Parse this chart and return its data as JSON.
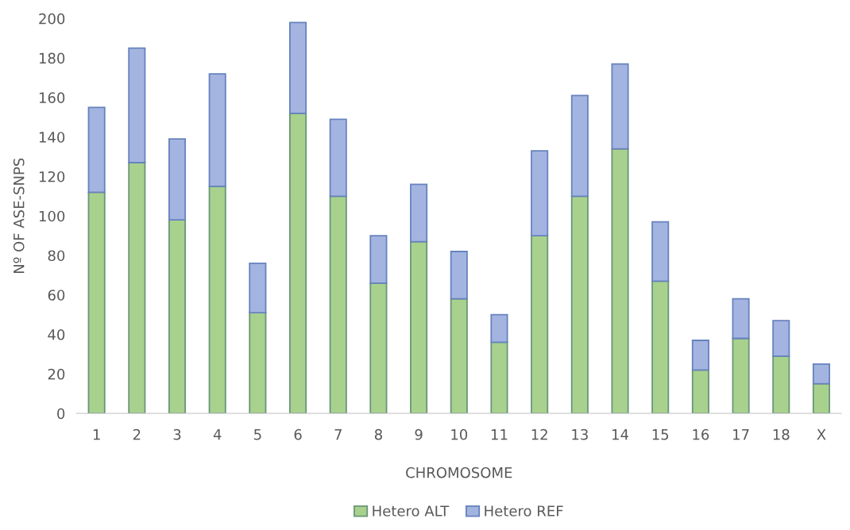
{
  "chart_data": {
    "type": "bar",
    "stacked": true,
    "xlabel": "CHROMOSOME",
    "ylabel": "Nº OF ASE-SNPS",
    "categories": [
      "1",
      "2",
      "3",
      "4",
      "5",
      "6",
      "7",
      "8",
      "9",
      "10",
      "11",
      "12",
      "13",
      "14",
      "15",
      "16",
      "17",
      "18",
      "X"
    ],
    "series": [
      {
        "name": "Hetero ALT",
        "color": "#a9d18e",
        "values": [
          112,
          127,
          98,
          115,
          51,
          152,
          110,
          66,
          87,
          58,
          36,
          90,
          110,
          134,
          67,
          22,
          38,
          29,
          15
        ]
      },
      {
        "name": "Hetero REF",
        "color": "#a4b4e0",
        "values": [
          43,
          58,
          41,
          57,
          25,
          46,
          39,
          24,
          29,
          24,
          14,
          43,
          51,
          43,
          30,
          15,
          20,
          18,
          10
        ]
      }
    ],
    "ylim": [
      0,
      200
    ],
    "yticks": [
      0,
      20,
      40,
      60,
      80,
      100,
      120,
      140,
      160,
      180,
      200
    ],
    "grid": false,
    "legend": "bottom"
  }
}
